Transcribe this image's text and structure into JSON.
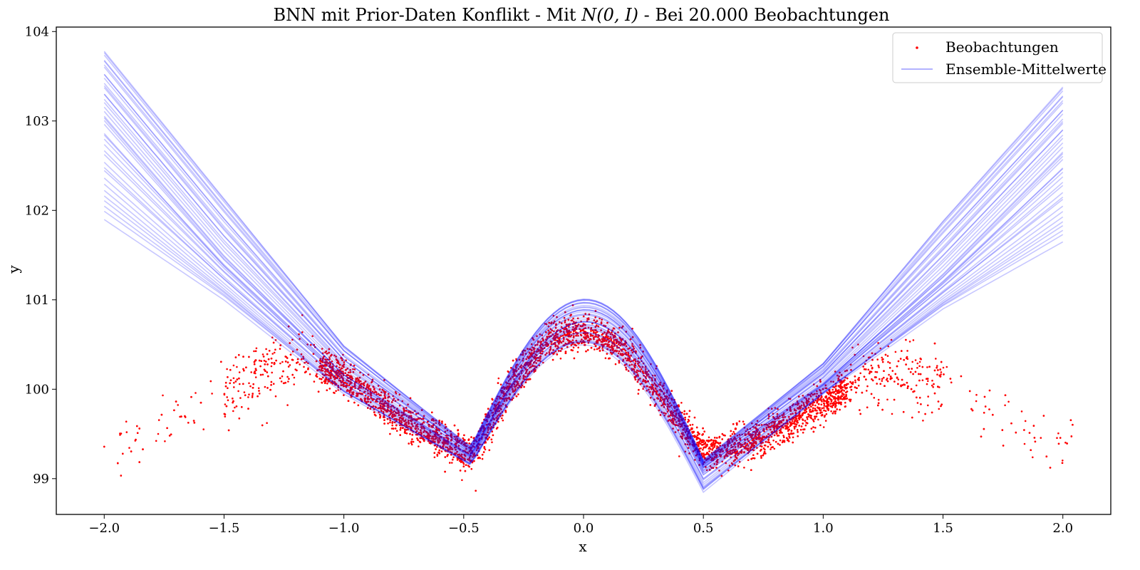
{
  "chart_data": {
    "type": "scatter",
    "title": "BNN mit Prior-Daten Konflikt - Mit N(0, I) - Bei 20.000 Beobachtungen",
    "title_parts": {
      "prefix": "BNN mit Prior-Daten Konflikt - Mit ",
      "math": "N(0, I)",
      "suffix": " - Bei 20.000 Beobachtungen"
    },
    "xlabel": "x",
    "ylabel": "y",
    "xlim": [
      -2.2,
      2.2
    ],
    "ylim": [
      98.6,
      104.05
    ],
    "xticks": [
      -2.0,
      -1.5,
      -1.0,
      -0.5,
      0.0,
      0.5,
      1.0,
      1.5,
      2.0
    ],
    "xtick_labels": [
      "−2.0",
      "−1.5",
      "−1.0",
      "−0.5",
      "0.0",
      "0.5",
      "1.0",
      "1.5",
      "2.0"
    ],
    "yticks": [
      99,
      100,
      101,
      102,
      103,
      104
    ],
    "ytick_labels": [
      "99",
      "100",
      "101",
      "102",
      "103",
      "104"
    ],
    "grid": false,
    "legend": {
      "position": "top-right",
      "entries": [
        {
          "label": "Beobachtungen",
          "marker": "dot",
          "color": "#ff0000"
        },
        {
          "label": "Ensemble-Mittelwerte",
          "marker": "line",
          "color": "#0000ff"
        }
      ]
    },
    "series": [
      {
        "name": "Beobachtungen",
        "kind": "scatter",
        "color": "#ff0000",
        "approx_count": 20000,
        "described_shape": {
          "x": [
            -2.0,
            -1.8,
            -1.6,
            -1.4,
            -1.2,
            -1.0,
            -0.8,
            -0.6,
            -0.47,
            -0.3,
            -0.15,
            0.0,
            0.15,
            0.3,
            0.5,
            0.7,
            0.9,
            1.1,
            1.3,
            1.5,
            1.7,
            1.9,
            2.05
          ],
          "y_center": [
            99.35,
            99.5,
            99.8,
            100.1,
            100.35,
            100.15,
            99.75,
            99.45,
            99.25,
            100.05,
            100.55,
            100.65,
            100.5,
            100.0,
            99.3,
            99.4,
            99.7,
            100.0,
            100.25,
            100.05,
            99.7,
            99.4,
            99.3
          ]
        }
      },
      {
        "name": "Ensemble-Mittelwerte",
        "kind": "line",
        "color": "#0000ff",
        "opacity": 0.22,
        "curve_count": 40,
        "knots_x": [
          -2.0,
          -1.5,
          -1.0,
          -0.47,
          0.0,
          0.5,
          1.0,
          1.5,
          2.0
        ],
        "mean_y": [
          103.0,
          101.45,
          100.15,
          99.25,
          100.75,
          99.12,
          100.05,
          101.25,
          102.6
        ],
        "min_y": [
          101.9,
          101.0,
          99.95,
          99.15,
          100.5,
          98.85,
          99.95,
          100.9,
          101.65
        ],
        "max_y": [
          103.8,
          102.15,
          100.5,
          99.35,
          101.02,
          99.2,
          100.3,
          101.9,
          103.4
        ]
      }
    ]
  }
}
